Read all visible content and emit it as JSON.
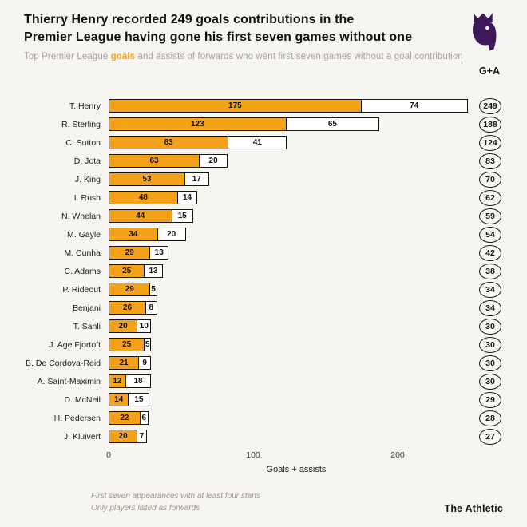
{
  "header": {
    "title_line1": "Thierry Henry recorded 249 goals contributions in the",
    "title_line2": "Premier League having gone his first seven games without one",
    "subtitle_prefix": "Top Premier League ",
    "subtitle_highlight": "goals",
    "subtitle_suffix": " and assists of forwards who went first seven games without a goal contribution"
  },
  "chart_data": {
    "type": "bar",
    "orientation": "horizontal",
    "stacked": true,
    "value_column_header": "G+A",
    "xlabel": "Goals + assists",
    "x_ticks": [
      0,
      100,
      200
    ],
    "xlim": [
      0,
      260
    ],
    "series_names": [
      "Goals",
      "Assists"
    ],
    "colors": {
      "goals": "#f5a21b",
      "assists": "#ffffff",
      "accent": "#f5a21b",
      "pl_purple": "#3d195b"
    },
    "players": [
      {
        "name": "T. Henry",
        "goals": 175,
        "assists": 74,
        "total": 249
      },
      {
        "name": "R. Sterling",
        "goals": 123,
        "assists": 65,
        "total": 188
      },
      {
        "name": "C. Sutton",
        "goals": 83,
        "assists": 41,
        "total": 124
      },
      {
        "name": "D. Jota",
        "goals": 63,
        "assists": 20,
        "total": 83
      },
      {
        "name": "J. King",
        "goals": 53,
        "assists": 17,
        "total": 70
      },
      {
        "name": "I. Rush",
        "goals": 48,
        "assists": 14,
        "total": 62
      },
      {
        "name": "N. Whelan",
        "goals": 44,
        "assists": 15,
        "total": 59
      },
      {
        "name": "M. Gayle",
        "goals": 34,
        "assists": 20,
        "total": 54
      },
      {
        "name": "M. Cunha",
        "goals": 29,
        "assists": 13,
        "total": 42
      },
      {
        "name": "C. Adams",
        "goals": 25,
        "assists": 13,
        "total": 38
      },
      {
        "name": "P. Rideout",
        "goals": 29,
        "assists": 5,
        "total": 34
      },
      {
        "name": "Benjani",
        "goals": 26,
        "assists": 8,
        "total": 34
      },
      {
        "name": "T. Sanli",
        "goals": 20,
        "assists": 10,
        "total": 30
      },
      {
        "name": "J. Age Fjortoft",
        "goals": 25,
        "assists": 5,
        "total": 30
      },
      {
        "name": "B. De Cordova-Reid",
        "goals": 21,
        "assists": 9,
        "total": 30
      },
      {
        "name": "A. Saint-Maximin",
        "goals": 12,
        "assists": 18,
        "total": 30
      },
      {
        "name": "D. McNeil",
        "goals": 14,
        "assists": 15,
        "total": 29
      },
      {
        "name": "H. Pedersen",
        "goals": 22,
        "assists": 6,
        "total": 28
      },
      {
        "name": "J. Kluivert",
        "goals": 20,
        "assists": 7,
        "total": 27
      }
    ]
  },
  "footnotes": [
    "First seven appearances with at least four starts",
    "Only players listed as forwards"
  ],
  "branding": {
    "athletic": "The Athletic"
  }
}
